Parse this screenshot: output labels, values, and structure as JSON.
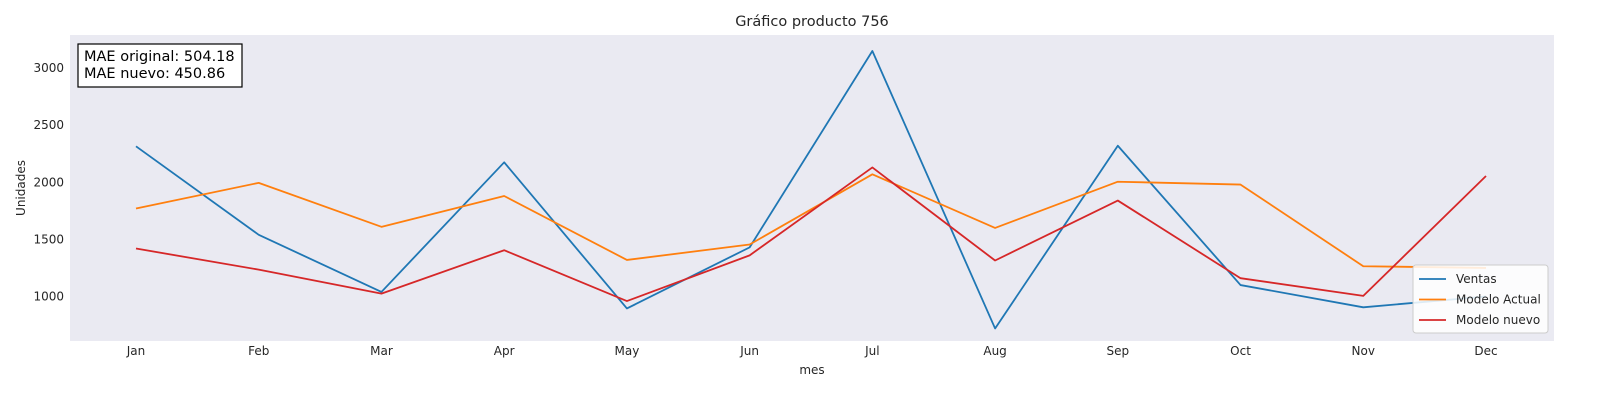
{
  "chart_data": {
    "type": "line",
    "title": "Gráfico producto 756",
    "xlabel": "mes",
    "ylabel": "Unidades",
    "categories": [
      "Jan",
      "Feb",
      "Mar",
      "Apr",
      "May",
      "Jun",
      "Jul",
      "Aug",
      "Sep",
      "Oct",
      "Nov",
      "Dec"
    ],
    "ylim": [
      610,
      3290
    ],
    "yticks": [
      1000,
      1500,
      2000,
      2500,
      3000
    ],
    "grid": false,
    "background": "#eaeaf2",
    "legend_position": "lower-right",
    "series": [
      {
        "name": "Ventas",
        "color": "#1f77b4",
        "values": [
          2315,
          1540,
          1040,
          2175,
          895,
          1430,
          3150,
          720,
          2320,
          1100,
          905,
          1000
        ]
      },
      {
        "name": "Modelo Actual",
        "color": "#ff7f0e",
        "values": [
          1770,
          1995,
          1610,
          1880,
          1320,
          1455,
          2070,
          1600,
          2005,
          1980,
          1265,
          1250
        ]
      },
      {
        "name": "Modelo nuevo",
        "color": "#d62728",
        "values": [
          1420,
          1235,
          1025,
          1405,
          960,
          1360,
          2130,
          1315,
          1840,
          1160,
          1005,
          2055
        ]
      }
    ],
    "annotation": {
      "line1": "MAE original: 504.18",
      "line2": "MAE nuevo: 450.86"
    }
  }
}
